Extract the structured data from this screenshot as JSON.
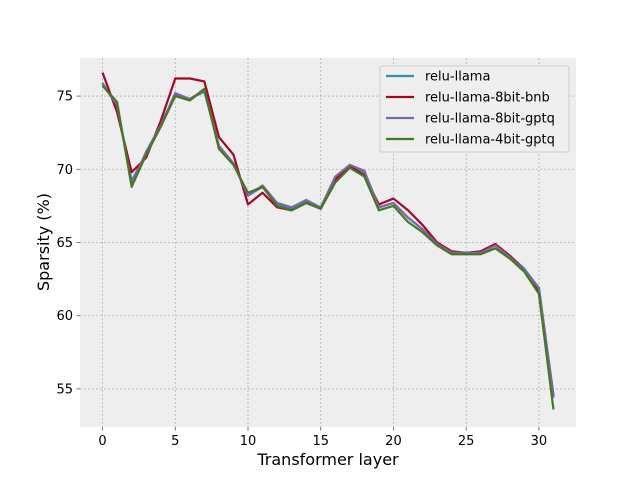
{
  "chart_data": {
    "type": "line",
    "title": "",
    "xlabel": "Transformer layer",
    "ylabel": "Sparsity (%)",
    "xlim": [
      -1.55,
      32.55
    ],
    "ylim": [
      52.4,
      77.6
    ],
    "xticks": [
      0,
      5,
      10,
      15,
      20,
      25,
      30
    ],
    "yticks": [
      55,
      60,
      65,
      70,
      75
    ],
    "grid": true,
    "legend_position": "top-right",
    "x": [
      0,
      1,
      2,
      3,
      4,
      5,
      6,
      7,
      8,
      9,
      10,
      11,
      12,
      13,
      14,
      15,
      16,
      17,
      18,
      19,
      20,
      21,
      22,
      23,
      24,
      25,
      26,
      27,
      28,
      29,
      30,
      31
    ],
    "series": [
      {
        "name": "relu-llama",
        "color": "#348ABD",
        "values": [
          75.9,
          74.3,
          69.2,
          71.1,
          73.0,
          75.1,
          74.8,
          75.3,
          71.6,
          70.4,
          68.2,
          68.8,
          67.6,
          67.3,
          67.8,
          67.3,
          69.4,
          70.3,
          69.8,
          67.4,
          67.7,
          66.7,
          65.9,
          64.9,
          64.3,
          64.3,
          64.3,
          64.8,
          64.1,
          63.2,
          61.9,
          54.6
        ]
      },
      {
        "name": "relu-llama-8bit-bnb",
        "color": "#A60628",
        "values": [
          76.6,
          73.9,
          69.8,
          70.8,
          73.3,
          76.2,
          76.2,
          76.0,
          72.2,
          71.0,
          67.6,
          68.4,
          67.4,
          67.2,
          67.7,
          67.4,
          69.3,
          70.2,
          69.6,
          67.6,
          68.0,
          67.2,
          66.2,
          65.0,
          64.4,
          64.3,
          64.4,
          64.9,
          64.1,
          63.1,
          61.6,
          54.5
        ]
      },
      {
        "name": "relu-llama-8bit-gptq",
        "color": "#7A68A6",
        "values": [
          75.8,
          74.4,
          69.0,
          71.2,
          73.0,
          75.2,
          74.8,
          75.4,
          71.6,
          70.4,
          68.2,
          68.9,
          67.7,
          67.4,
          67.9,
          67.4,
          69.5,
          70.3,
          69.9,
          67.4,
          67.7,
          66.7,
          65.9,
          64.9,
          64.3,
          64.3,
          64.3,
          64.8,
          64.0,
          63.1,
          61.9,
          54.4
        ]
      },
      {
        "name": "relu-llama-4bit-gptq",
        "color": "#467821",
        "values": [
          75.7,
          74.6,
          68.8,
          71.0,
          72.9,
          75.0,
          74.7,
          75.5,
          71.4,
          70.3,
          68.4,
          68.8,
          67.5,
          67.2,
          67.7,
          67.3,
          69.1,
          70.1,
          69.5,
          67.2,
          67.5,
          66.4,
          65.7,
          64.8,
          64.2,
          64.2,
          64.2,
          64.6,
          63.9,
          63.0,
          61.5,
          53.6
        ]
      }
    ]
  }
}
